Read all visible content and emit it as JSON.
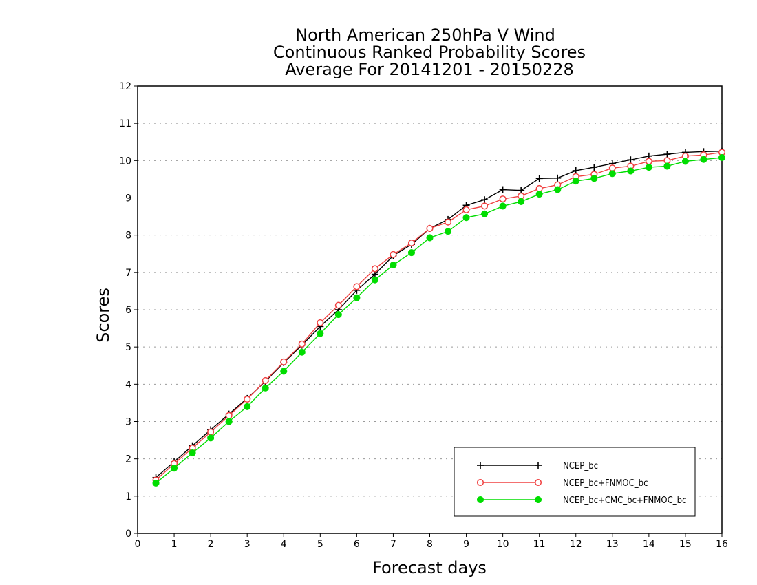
{
  "chart_data": {
    "type": "line",
    "title_lines": [
      "North American 250hPa V Wind",
      "Continuous Ranked Probability Scores",
      "Average For 20141201 - 20150228"
    ],
    "xlabel": "Forecast days",
    "ylabel": "Scores",
    "xlim": [
      0,
      16
    ],
    "ylim": [
      0,
      12
    ],
    "xticks": [
      0,
      1,
      2,
      3,
      4,
      5,
      6,
      7,
      8,
      9,
      10,
      11,
      12,
      13,
      14,
      15,
      16
    ],
    "yticks": [
      0,
      1,
      2,
      3,
      4,
      5,
      6,
      7,
      8,
      9,
      10,
      11,
      12
    ],
    "grid": "horizontal dotted",
    "legend_position": "bottom-right",
    "x": [
      0.5,
      1,
      1.5,
      2,
      2.5,
      3,
      3.5,
      4,
      4.5,
      5,
      5.5,
      6,
      6.5,
      7,
      7.5,
      8,
      8.5,
      9,
      9.5,
      10,
      10.5,
      11,
      11.5,
      12,
      12.5,
      13,
      13.5,
      14,
      14.5,
      15,
      15.5,
      16
    ],
    "series": [
      {
        "name": "NCEP_bc",
        "color": "#000000",
        "marker": "plus",
        "values": [
          1.5,
          1.92,
          2.35,
          2.78,
          3.2,
          3.62,
          4.08,
          4.58,
          5.05,
          5.55,
          6.0,
          6.52,
          6.95,
          7.45,
          7.75,
          8.18,
          8.42,
          8.8,
          8.95,
          9.22,
          9.2,
          9.52,
          9.53,
          9.73,
          9.82,
          9.92,
          10.02,
          10.12,
          10.17,
          10.22,
          10.24,
          10.25
        ]
      },
      {
        "name": "NCEP_bc+FNMOC_bc",
        "color": "#f04040",
        "marker": "open-circle",
        "values": [
          1.43,
          1.87,
          2.29,
          2.72,
          3.16,
          3.6,
          4.1,
          4.6,
          5.08,
          5.65,
          6.12,
          6.62,
          7.1,
          7.48,
          7.79,
          8.18,
          8.35,
          8.68,
          8.78,
          8.97,
          9.05,
          9.25,
          9.35,
          9.57,
          9.63,
          9.8,
          9.85,
          9.98,
          10.0,
          10.12,
          10.15,
          10.22
        ]
      },
      {
        "name": "NCEP_bc+CMC_bc+FNMOC_bc",
        "color": "#00dd00",
        "marker": "filled-circle",
        "values": [
          1.35,
          1.75,
          2.16,
          2.56,
          3.0,
          3.4,
          3.9,
          4.35,
          4.86,
          5.36,
          5.87,
          6.32,
          6.8,
          7.2,
          7.53,
          7.93,
          8.1,
          8.47,
          8.57,
          8.78,
          8.9,
          9.1,
          9.22,
          9.45,
          9.52,
          9.65,
          9.72,
          9.82,
          9.85,
          9.98,
          10.03,
          10.08
        ]
      }
    ]
  }
}
